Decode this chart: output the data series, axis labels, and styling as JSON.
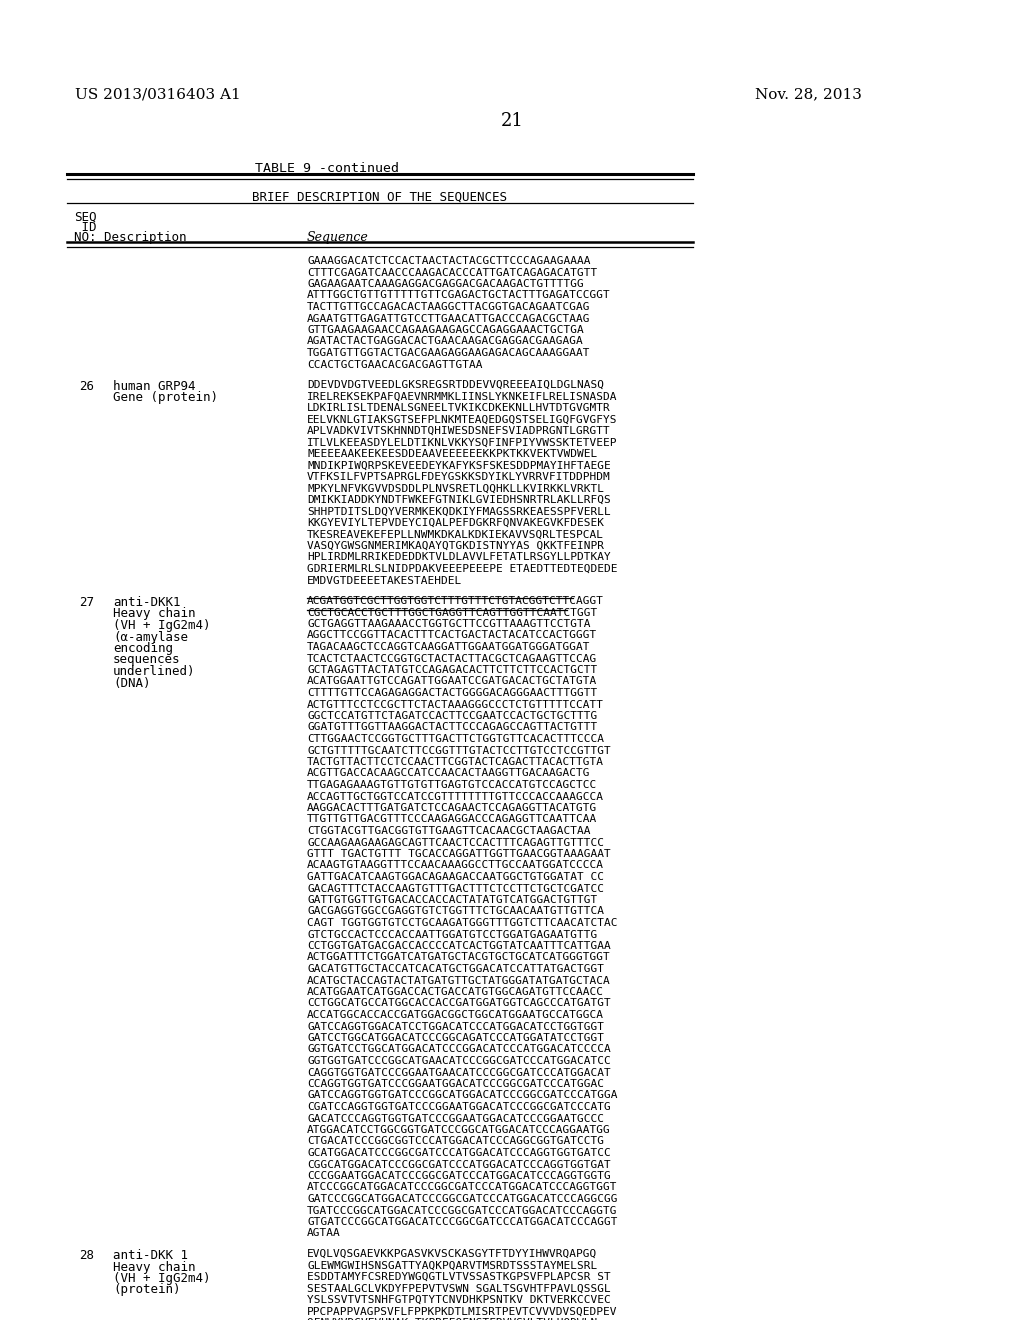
{
  "bg_color": "#ffffff",
  "header_left": "US 2013/0316403 A1",
  "header_right": "Nov. 28, 2013",
  "page_number": "21",
  "table_title": "TABLE 9 -continued",
  "table_header": "BRIEF DESCRIPTION OF THE SEQUENCES",
  "seq_cont_lines": [
    "GAAAGGACATCTCCACTAACTACTACGCTTCCCAGAAGAAAA",
    "CTTTCGAGATCAACCCAAGACACCCATTGATCAGAGACATGTT",
    "GAGAAGAATCAAAGAGGACGAGGACGACAAGACTGTTTTGG",
    "ATTTGGCTGTTGTTTTTGTTCGAGACTGCTACTTTGAGATCCGGT",
    "TACTTGTTGCCAGACACTAAGGCTTACGGTGACAGAATCGAG",
    "AGAATGTTGAGATTGTCCTTGAACATTGACCCAGACGCTAAG",
    "GTTGAAGAAGAACCAGAAGAAGAGCCAGAGGAAACTGCTGA",
    "AGATACTACTGAGGACACTGAACAAGACGAGGACGAAGAGA",
    "TGGATGTTGGTACTGACGAAGAGGAAGAGACAGCAAAGGAAT",
    "CCACTGCTGAACACGACGAGTTGTAA"
  ],
  "seq26_desc1": "human GRP94",
  "seq26_desc2": "Gene (protein)",
  "seq26_lines": [
    "DDEVDVDGTVEEDLGKSREGSRTDDEVVQREEEAIQLDGLNASQ",
    "IRELREKSEKPAFQAEVNRMMKLIINSLYKNKEIFLRELISNASDA",
    "LDKIRLISLTDENALSGNEELTVKIKCDKEKNLLHVTDTGVGMTR",
    "EELVKNLGTIAKSGTSEFPLNKMTEAQEDGQSTSELIGQFGVGFYS",
    "APLVADKVIVTSKHNNDTQHIWESDSNEFSVIADPRGNTLGRGTT",
    "ITLVLKEEASDYLELDTIKNLVKKYSQFINFPIYVWSSKTETVEEP",
    "MEEEEAAKEEKEESDDEAAVEEEEEEKKPKTKKVEKTVWDWEL",
    "MNDIKPIWQRPSKEVEEDEYKAFYKSFSKESDDPMAYIHFTAEGE",
    "VTFKSILFVPTSAPRGLFDEYGSKKSDYIKLYVRRVFITDDPHDM",
    "MPKYLNFVKGVVDSDDLPLNVSRETLQQHKLLKVIRKKLVRKTL",
    "DMIKKIADDKYNDTFWKEFGTNIKLGVIEDHSNRTRLAKLLRFQS",
    "SHHPTDITSLDQYVERMKEKQDKIYFMAGSSRKEAESSPFVERLL",
    "KKGYEVIYLTEPVDEYCIQALPEFDGKRFQNVAKEGVKFDESEK",
    "TKESREAVEKEFEPLLNWMKDKALKDKIEKAVVSQRLTESPCAL",
    "VASQYGWSGNMERIMKAQAYQTGKDISTNYYAS QKKTFEINPR",
    "HPLIRDMLRRIKEDEDDKTVLDLAVVLFETATLRSGYLLPDTKAY",
    "GDRIERMLRLSLNIDPDAKVEEEPEEEPE ETAEDTTEDTEQDEDE",
    "EMDVGTDEEEETAKESTAEHDEL"
  ],
  "seq27_desc": [
    "anti-DKK1",
    "Heavy chain",
    "(VH + IgG2m4)",
    "(α-amylase",
    "encoding",
    "sequences",
    "underlined)",
    "(DNA)"
  ],
  "seq27_underlined": [
    "ACGATGGTCGCTTGGTGGTCTTTGTTTCTGTACGGTCTTCAGGT",
    "CGCTGCACCTGCTTTGGCTGAGGTTCAGTTGGTTCAATCTGGT"
  ],
  "seq27_normal": [
    "GCTGAGGTTAAGAAACCTGGTGCTTCCGTTAAAGTTCCTGTA",
    "AGGCTTCCGGTTACACTTTCACTGACTACTACATCCACTGGGT",
    "TAGACAAGCTCCAGGTCAAGGATTGGAATGGATGGGATGGAT",
    "TCACTCTAACTCCGGTGCTACTACTTACGCTCAGAAGTTCCAG",
    "GCTAGAGTTACTATGTCCAGAGACACTTCTTCTTCCACTGCTT",
    "ACATGGAATTGTCCAGATTGGAATCCGATGACACTGCTATGTA",
    "CTTTTGTTCCAGAGAGGACTACTGGGGACAGGGAACTTTGGTT",
    "ACTGTTTCCTCCGCTTCTACTAAAGGGCCCTCTGTTTTTCCATT",
    "GGCTCCATGTTCTAGATCCACTTCCGAATCCACTGCTGCTTTG",
    "GGATGTTTGGTTAAGGACTACTTCCCAGAGCCAGTTACTGTTT",
    "CTTGGAACTCCGGTGCTTTGACTTCTGGTGTTCACACTTTCCCA",
    "GCTGTTTTTGCAATCTTCCGGTTTGTACTCCTTGTCCTCCGTTGT",
    "TACTGTTACTTCCTCCAACTTCGGTACTCAGACTTACACTTGTA",
    "ACGTTGACCACAAGCCATCCAACACTAAGGTTGACAAGACTG",
    "TTGAGAGAAAGTGTTGTGTTGAGTGTCCACCATGTCCAGCTCC",
    "ACCAGTTGCTGGTCCATCCGTTTTTTTTGTTCCCACCAAAGCCA",
    "AAGGACACTTTGATGATCTCCAGAACTCCAGAGGTTACATGTG",
    "TTGTTGTTGACGTTTCCCAAGAGGACCCAGAGGTTCAATTCAA",
    "CTGGTACGTTGACGGTGTTGAAGTTCACAACGCTAAGACTAA",
    "GCCAAGAAGAAGAGCAGTTCAACTCCACTTTCAGAGTTGTTTCC",
    "GTTT TGACTGTTT TGCACCAGGATTGGTTGAACGGTAAAGAAT",
    "ACAAGTGTAAGGTTTCCAACAAAGGCCTTGCCAATGGATCCCCA",
    "GATTGACATCAAGTGGACAGAAGACCAATGGCTGTGGATAT CC",
    "GACAGTTTCTACCAAGTGTTTGACTTTCTCCTTCTGCTCGATCC",
    "GATTGTGGTTGTGACACCACCACTATATGTCATGGACTGTTGT",
    "GACGAGGTGGCCGAGGTGTCTGGTTTCTGCAACAATGTTGTTCA",
    "CAGT TGGTGGTGTCCTGCAAGATGGGTTTGGTCTTCAACATCTAC",
    "GTCTGCCACTCCCACCAATTGGATGTCCTGGATGAGAATGTTG",
    "CCTGGTGATGACGACCACCCCATCACTGGTATCAATTTCATTGAA",
    "ACTGGATTTCTGGATCATGATGCTACGTGCTGCATCATGGGTGGT",
    "GACATGTTGCTACCATCACATGCTGGACATCCATTATGACTGGT",
    "ACATGCTACCAGTACTATGATGTTGCTATGGGATATGATGCTACA",
    "ACATGGAATCATGGACCACTGACCATGTGGCAGATGTTCCAACC",
    "CCTGGCATGCCATGGCACCACCGATGGATGGTCAGCCCATGATGT",
    "ACCATGGCACCACCGATGGACGGCTGGCATGGAATGCCATGGCA",
    "GATCCAGGTGGACATCCTGGACATCCCATGGACATCCTGGTGGT",
    "GATCCTGGCATGGACATCCCGGCAGATCCCATGGATATCCTGGT",
    "GGTGATCCTGGCATGGACATCCCGGACATCCCATGGACATCCCCA",
    "GGTGGTGATCCCGGCATGAACATCCCGGCGATCCCATGGACATCC",
    "CAGGTGGTGATCCCGGAATGAACATCCCGGCGATCCCATGGACAT",
    "CCAGGTGGTGATCCCGGAATGGACATCCCGGCGATCCCATGGAC",
    "GATCCAGGTGGTGATCCCGGCATGGACATCCCGGCGATCCCATGGA",
    "CGATCCAGGTGGTGATCCCGGAATGGACATCCCGGCGATCCCATG",
    "GACATCCCAGGTGGTGATCCCGGAATGGACATCCCGGAATGCCC",
    "ATGGACATCCTGGCGGTGATCCCGGCATGGACATCCCAGGAATGG",
    "CTGACATCCCGGCGGTCCCATGGACATCCCAGGCGGTGATCCTG",
    "GCATGGACATCCCGGCGATCCCATGGACATCCCAGGTGGTGATCC",
    "CGGCATGGACATCCCGGCGATCCCATGGACATCCCAGGTGGTGAT",
    "CCCGGAATGGACATCCCGGCGATCCCATGGACATCCCAGGTGGTG",
    "ATCCCGGCATGGACATCCCGGCGATCCCATGGACATCCCAGGTGGT",
    "GATCCCGGCATGGACATCCCGGCGATCCCATGGACATCCCAGGCGG",
    "TGATCCCGGCATGGACATCCCGGCGATCCCATGGACATCCCAGGTG",
    "GTGATCCCGGCATGGACATCCCGGCGATCCCATGGACATCCCAGGT",
    "AGTAA"
  ],
  "seq28_desc": [
    "anti-DKK 1",
    "Heavy chain",
    "(VH + IgG2m4)",
    "(protein)"
  ],
  "seq28_lines": [
    "EVQLVQSGAEVKKPGASVKVSCKASGYTFTDYYIHWVRQAPGQ",
    "GLEWMGWIHSNSGATTYAQKPQARVTMSRDTSSSTAYMELSRL",
    "ESDDTAMYFCSREDYWGQGTLVTVSSASTKGPSVFPLAPCSR ST",
    "SESTAALGCLVKDYFPEPVTVSWN SGALTSGVHTFPAVLQSSGL",
    "YSLSSVTVTSNHFGTPQTYTCNVDHKPSNTKV DKTVERKCCVEC",
    "PPCPAPPVAGPSVFLFPPKPKDTLMISRTPEVTCVVVDVSQEDPEV",
    "QFNWYVDGVEVHNAK TKPREEQFNSTFRVVSVLTVLHQDWLN"
  ]
}
